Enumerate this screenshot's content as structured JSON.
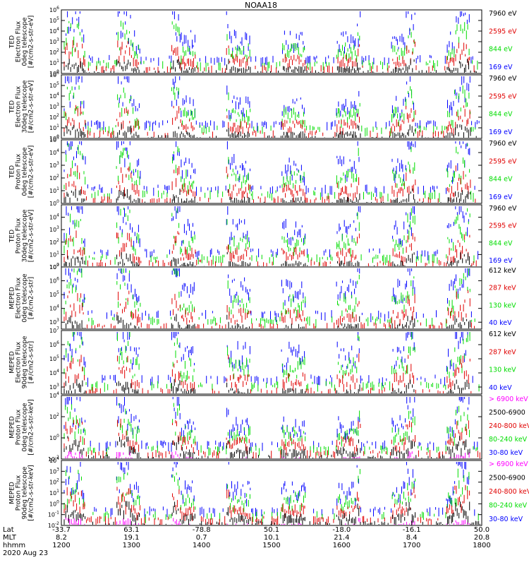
{
  "title": "NOAA18",
  "colors": {
    "blue": "#0000ff",
    "red": "#e00000",
    "green": "#00dd00",
    "black": "#000000",
    "magenta": "#ff00ff"
  },
  "chart_data": [
    {
      "type": "scatter",
      "ylabel": [
        "TED",
        "Electron Flux",
        "0deg telescope",
        "[#/cm2-s-str-eV]"
      ],
      "log": true,
      "ylim_exp": [
        0,
        6
      ],
      "tick_exps": [
        0,
        1,
        2,
        3,
        4,
        5,
        6
      ],
      "channels": [
        {
          "label": "7960 eV",
          "color": "black"
        },
        {
          "label": "2595 eV",
          "color": "red"
        },
        {
          "label": "844 eV",
          "color": "green"
        },
        {
          "label": "169 eV",
          "color": "blue"
        }
      ]
    },
    {
      "type": "scatter",
      "ylabel": [
        "TED",
        "Electron Flux",
        "30deg telescope",
        "[#/cm2-s-str-eV]"
      ],
      "log": true,
      "ylim_exp": [
        0,
        6
      ],
      "tick_exps": [
        0,
        1,
        2,
        3,
        4,
        5,
        6
      ],
      "channels": [
        {
          "label": "7960 eV",
          "color": "black"
        },
        {
          "label": "2595 eV",
          "color": "red"
        },
        {
          "label": "844 eV",
          "color": "green"
        },
        {
          "label": "169 eV",
          "color": "blue"
        }
      ]
    },
    {
      "type": "scatter",
      "ylabel": [
        "TED",
        "Proton Flux",
        "0deg telescope",
        "[#/cm2-s-str-eV]"
      ],
      "log": true,
      "ylim_exp": [
        0,
        5
      ],
      "tick_exps": [
        0,
        1,
        2,
        3,
        4,
        5
      ],
      "channels": [
        {
          "label": "7960 eV",
          "color": "black"
        },
        {
          "label": "2595 eV",
          "color": "red"
        },
        {
          "label": "844 eV",
          "color": "green"
        },
        {
          "label": "169 eV",
          "color": "blue"
        }
      ]
    },
    {
      "type": "scatter",
      "ylabel": [
        "TED",
        "Proton Flux",
        "30deg telescope",
        "[#/cm2-s-str-eV]"
      ],
      "log": true,
      "ylim_exp": [
        0,
        5
      ],
      "tick_exps": [
        0,
        1,
        2,
        3,
        4
      ],
      "channels": [
        {
          "label": "7960 eV",
          "color": "black"
        },
        {
          "label": "2595 eV",
          "color": "red"
        },
        {
          "label": "844 eV",
          "color": "green"
        },
        {
          "label": "169 eV",
          "color": "blue"
        }
      ]
    },
    {
      "type": "scatter",
      "ylabel": [
        "MEPED",
        "Electron Flux",
        "0deg telescope",
        "[#/cm2-s-str]"
      ],
      "log": true,
      "ylim_exp": [
        2.5,
        7
      ],
      "tick_exps": [
        3,
        4,
        5,
        6,
        7
      ],
      "channels": [
        {
          "label": "612 keV",
          "color": "black"
        },
        {
          "label": "287 keV",
          "color": "red"
        },
        {
          "label": "130 keV",
          "color": "green"
        },
        {
          "label": "40 keV",
          "color": "blue"
        }
      ]
    },
    {
      "type": "scatter",
      "ylabel": [
        "MEPED",
        "Electron Flux",
        "90deg telescope",
        "[#/cm2-s-str]"
      ],
      "log": true,
      "ylim_exp": [
        2.5,
        7
      ],
      "tick_exps": [
        3,
        4,
        5,
        6,
        7
      ],
      "channels": [
        {
          "label": "612 keV",
          "color": "black"
        },
        {
          "label": "287 keV",
          "color": "red"
        },
        {
          "label": "130 keV",
          "color": "green"
        },
        {
          "label": "40 keV",
          "color": "blue"
        }
      ]
    },
    {
      "type": "scatter",
      "ylabel": [
        "MEPED",
        "Proton Flux",
        "0deg telescope",
        "[#/cm2-s-str-keV]"
      ],
      "log": true,
      "ylim_exp": [
        -2,
        4
      ],
      "tick_exps": [
        -2,
        0,
        2,
        4
      ],
      "channels": [
        {
          "label": "> 6900 keV",
          "color": "magenta"
        },
        {
          "label": "2500-6900",
          "color": "black"
        },
        {
          "label": "240-800 keV",
          "color": "red"
        },
        {
          "label": "80-240 keV",
          "color": "green"
        },
        {
          "label": "30-80 keV",
          "color": "blue"
        }
      ]
    },
    {
      "type": "scatter",
      "ylabel": [
        "MEPED",
        "Proton Flux",
        "90deg telescope",
        "[#/cm2-s-str-keV]"
      ],
      "log": true,
      "ylim_exp": [
        -2,
        4
      ],
      "tick_exps": [
        -2,
        -1,
        0,
        1,
        2,
        3,
        4
      ],
      "channels": [
        {
          "label": "> 6900 keV",
          "color": "magenta"
        },
        {
          "label": "2500-6900",
          "color": "black"
        },
        {
          "label": "240-800 keV",
          "color": "red"
        },
        {
          "label": "80-240 keV",
          "color": "green"
        },
        {
          "label": "30-80 keV",
          "color": "blue"
        }
      ]
    }
  ],
  "x_axis": {
    "row_labels": [
      "Lat",
      "MLT",
      "hhmm"
    ],
    "ticks": [
      {
        "lat": "-33.7",
        "mlt": "8.2",
        "hhmm": "1200"
      },
      {
        "lat": "63.1",
        "mlt": "19.1",
        "hhmm": "1300"
      },
      {
        "lat": "-78.8",
        "mlt": "0.7",
        "hhmm": "1400"
      },
      {
        "lat": "50.1",
        "mlt": "10.1",
        "hhmm": "1500"
      },
      {
        "lat": "-18.0",
        "mlt": "21.4",
        "hhmm": "1600"
      },
      {
        "lat": "-16.1",
        "mlt": "8.4",
        "hhmm": "1700"
      },
      {
        "lat": "50.0",
        "mlt": "20.8",
        "hhmm": "1800"
      }
    ],
    "date": "2020 Aug 23"
  }
}
